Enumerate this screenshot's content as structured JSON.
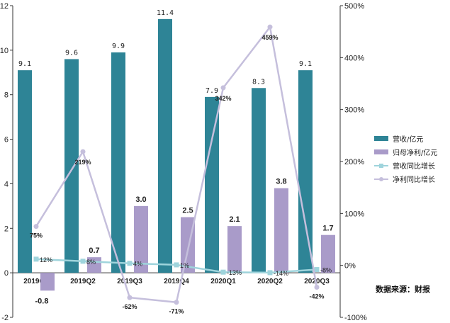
{
  "chart_data": {
    "type": "bar",
    "categories": [
      "2019Q1",
      "2019Q2",
      "2019Q3",
      "2019Q4",
      "2020Q1",
      "2020Q2",
      "2020Q3"
    ],
    "series": [
      {
        "name": "营收/亿元",
        "kind": "bar",
        "axis": "left",
        "color": "#2e8496",
        "values": [
          9.1,
          9.6,
          9.9,
          11.4,
          7.9,
          8.3,
          9.1
        ],
        "labels": [
          "9.1",
          "9.6",
          "9.9",
          "11.4",
          "7.9",
          "8.3",
          "9.1"
        ]
      },
      {
        "name": "归母净利/亿元",
        "kind": "bar",
        "axis": "left",
        "color": "#a99bc9",
        "values": [
          -0.8,
          0.7,
          3.0,
          2.5,
          2.1,
          3.8,
          1.7
        ],
        "labels": [
          "-0.8",
          "0.7",
          "3.0",
          "2.5",
          "2.1",
          "3.8",
          "1.7"
        ]
      },
      {
        "name": "营收同比增长",
        "kind": "line",
        "axis": "right",
        "color": "#9fd4dc",
        "values": [
          12,
          8,
          4,
          1,
          -13,
          -14,
          -8
        ],
        "labels": [
          "12%",
          "8%",
          "4%",
          "1%",
          "-13%",
          "-14%",
          "-8%"
        ]
      },
      {
        "name": "净利同比增长",
        "kind": "line",
        "axis": "right",
        "color": "#c5bfdc",
        "values": [
          75,
          219,
          -62,
          -71,
          342,
          459,
          -42
        ],
        "labels": [
          "75%",
          "219%",
          "-62%",
          "-71%",
          "342%",
          "459%",
          "-42%"
        ]
      }
    ],
    "left_axis": {
      "ylim": [
        -2,
        12
      ],
      "ticks": [
        "-2",
        "0",
        "2",
        "4",
        "6",
        "8",
        "10",
        "12"
      ]
    },
    "right_axis": {
      "ylim": [
        -100,
        500
      ],
      "ticks": [
        "-100%",
        "0%",
        "100%",
        "200%",
        "300%",
        "400%",
        "500%"
      ]
    },
    "legend_position": "right",
    "source_note": "数据来源：财报",
    "grid": false
  }
}
